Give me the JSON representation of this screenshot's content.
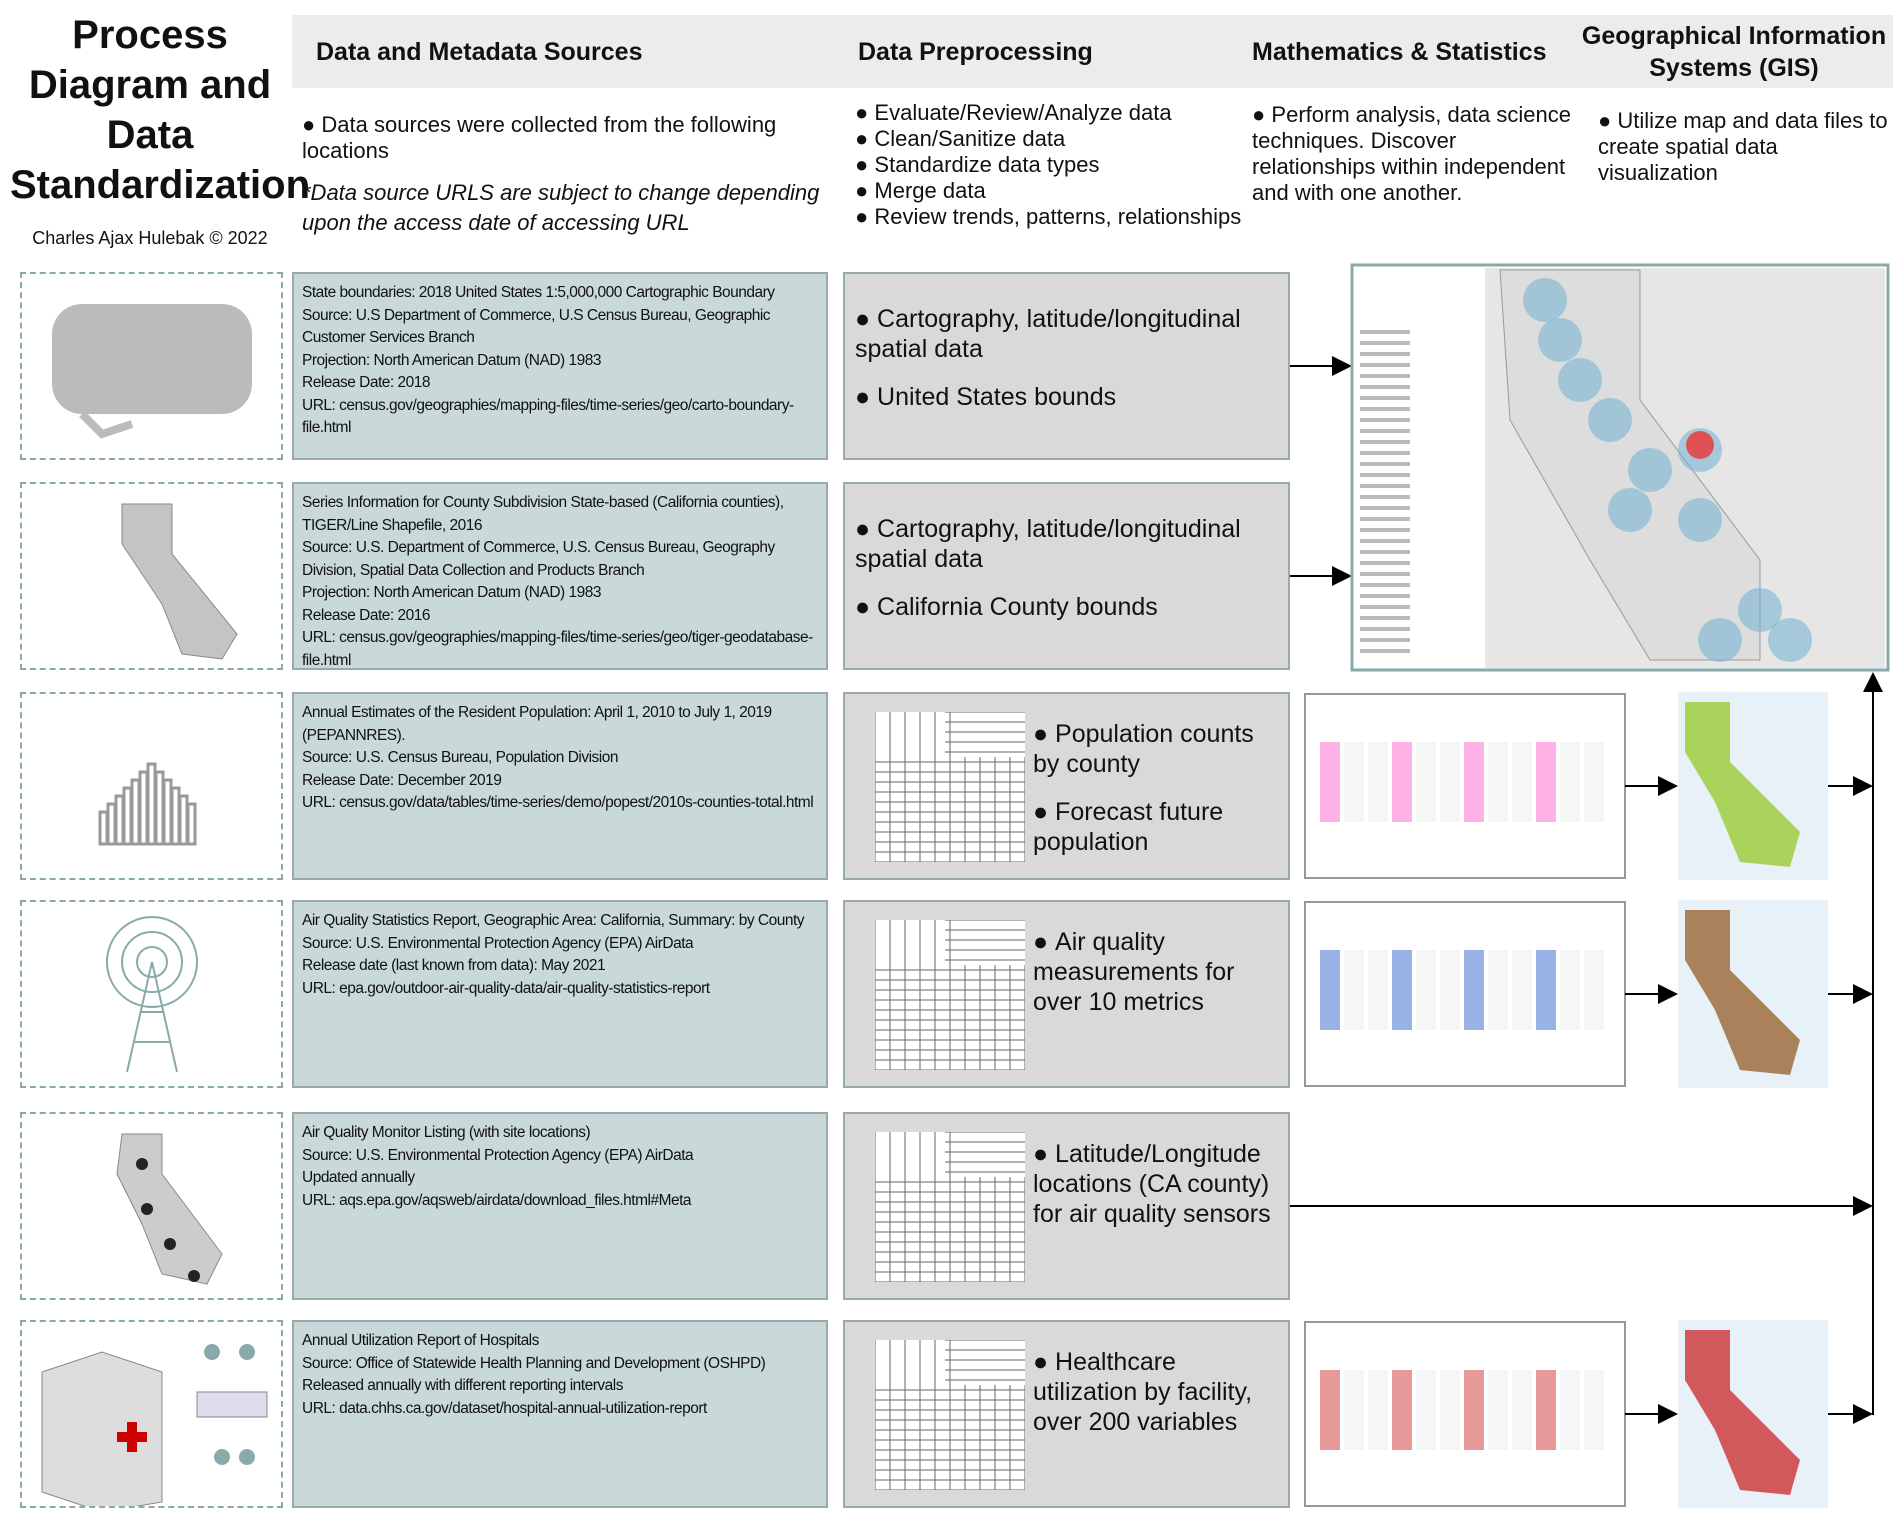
{
  "title": "Process Diagram and Data Standardization",
  "author": "Charles Ajax Hulebak © 2022",
  "columns": [
    {
      "header": "Data and Metadata Sources",
      "description": [
        "Data sources were collected from the following locations"
      ],
      "note": "*Data source URLS are subject to change depending upon the access date of accessing URL"
    },
    {
      "header": "Data Preprocessing",
      "description": [
        "Evaluate/Review/Analyze data",
        "Clean/Sanitize data",
        "Standardize data types",
        "Merge data",
        "Review trends, patterns, relationships"
      ]
    },
    {
      "header": "Mathematics & Statistics",
      "description": [
        "Perform analysis, data science techniques.  Discover relationships within independent and with one another."
      ]
    },
    {
      "header": "Geographical Information Systems (GIS)",
      "description": [
        "Utilize map and data files to create spatial data visualization"
      ]
    }
  ],
  "rows": [
    {
      "source": [
        "State boundaries: 2018 United States 1:5,000,000 Cartographic Boundary",
        "Source: U.S Department of Commerce, U.S Census Bureau, Geographic Customer Services Branch",
        "Projection: North American Datum (NAD) 1983",
        "Release Date: 2018",
        "URL:  census.gov/geographies/mapping-files/time-series/geo/carto-boundary-file.html"
      ],
      "preprocessing": [
        "Cartography, latitude/longitudinal spatial data",
        "United States bounds"
      ]
    },
    {
      "source": [
        "Series Information for County Subdivision State-based (California counties), TIGER/Line Shapefile, 2016",
        "Source: U.S. Department of Commerce, U.S. Census Bureau, Geography Division, Spatial Data Collection and Products Branch",
        "Projection: North American Datum (NAD) 1983",
        "Release Date: 2016",
        "URL:  census.gov/geographies/mapping-files/time-series/geo/tiger-geodatabase-file.html"
      ],
      "preprocessing": [
        "Cartography, latitude/longitudinal spatial data",
        "California County bounds"
      ]
    },
    {
      "source": [
        "Annual Estimates of the Resident Population: April 1, 2010 to July 1, 2019 (PEPANNRES).",
        "Source: U.S. Census Bureau, Population Division",
        "Release Date: December 2019",
        "URL: census.gov/data/tables/time-series/demo/popest/2010s-counties-total.html"
      ],
      "preprocessing": [
        "Population counts by county",
        "Forecast future population"
      ]
    },
    {
      "source": [
        "Air Quality Statistics Report, Geographic Area: California, Summary: by County",
        "Source: U.S. Environmental Protection Agency (EPA) AirData",
        "Release date (last known from data):  May 2021",
        "URL: epa.gov/outdoor-air-quality-data/air-quality-statistics-report"
      ],
      "preprocessing": [
        "Air quality measurements for over 10 metrics"
      ]
    },
    {
      "source": [
        "Air Quality Monitor Listing (with site locations)",
        "Source: U.S. Environmental Protection Agency (EPA) AirData",
        "Updated annually",
        "URL: aqs.epa.gov/aqsweb/airdata/download_files.html#Meta"
      ],
      "preprocessing": [
        "Latitude/Longitude locations (CA county) for air quality sensors"
      ]
    },
    {
      "source": [
        "Annual Utilization Report of Hospitals",
        "Source: Office of Statewide Health Planning and Development (OSHPD)",
        "Released annually with different reporting intervals",
        "URL: data.chhs.ca.gov/dataset/hospital-annual-utilization-report"
      ],
      "preprocessing": [
        "Healthcare utilization by facility, over 200 variables"
      ]
    }
  ]
}
